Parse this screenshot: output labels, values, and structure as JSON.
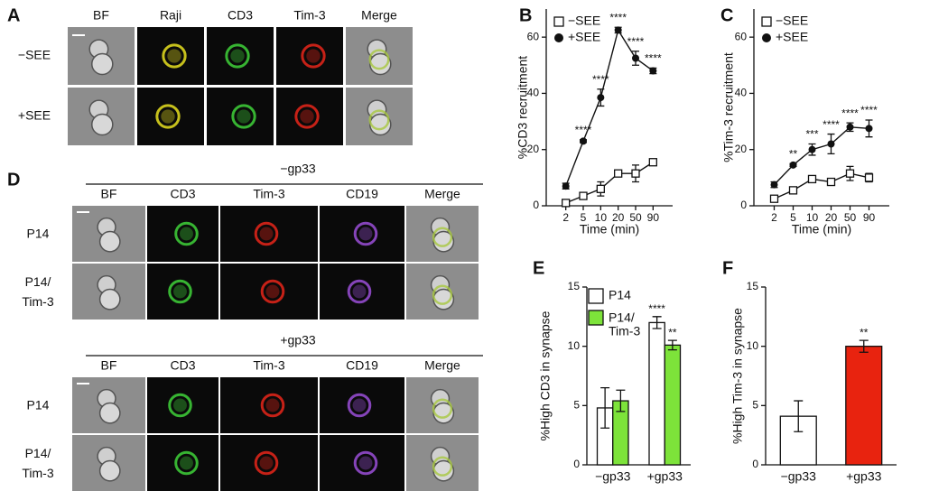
{
  "image_panels": [
    {
      "label": "A",
      "columns": [
        "BF",
        "Raji",
        "CD3",
        "Tim-3",
        "Merge"
      ],
      "rows": [
        "−SEE",
        "+SEE"
      ]
    },
    {
      "label": "D",
      "sections": [
        {
          "title": "−gp33",
          "columns": [
            "BF",
            "CD3",
            "Tim-3",
            "CD19",
            "Merge"
          ],
          "rows": [
            "P14",
            "P14/Tim-3"
          ]
        },
        {
          "title": "+gp33",
          "columns": [
            "BF",
            "CD3",
            "Tim-3",
            "CD19",
            "Merge"
          ],
          "rows": [
            "P14",
            "P14/Tim-3"
          ]
        }
      ]
    }
  ],
  "chart_data": [
    {
      "type": "line",
      "label": "B",
      "y_label": "%CD3 recruitment",
      "x_label": "Time (min)",
      "categories": [
        "2",
        "5",
        "10",
        "20",
        "50",
        "90"
      ],
      "ylim": [
        0,
        70
      ],
      "yticks": [
        0,
        20,
        40,
        60
      ],
      "legend": "upper left",
      "series": [
        {
          "name": "−SEE",
          "color": "#ffffff",
          "marker": "square",
          "values": [
            1,
            3.5,
            6,
            11.5,
            11.5,
            15.5
          ],
          "errors": [
            0.5,
            0.5,
            2.5,
            1,
            3,
            0.5
          ]
        },
        {
          "name": "+SEE",
          "color": "#111111",
          "marker": "circle",
          "values": [
            7,
            23,
            38.5,
            62.5,
            52.5,
            48
          ],
          "errors": [
            1,
            0.5,
            3,
            1,
            2.5,
            1
          ],
          "annotations": [
            null,
            "****",
            "****",
            "****",
            "****",
            "****"
          ]
        }
      ]
    },
    {
      "type": "line",
      "label": "C",
      "y_label": "%Tim-3 recruitment",
      "x_label": "Time (min)",
      "categories": [
        "2",
        "5",
        "10",
        "20",
        "50",
        "90"
      ],
      "ylim": [
        0,
        70
      ],
      "yticks": [
        0,
        20,
        40,
        60
      ],
      "legend": "upper left",
      "series": [
        {
          "name": "−SEE",
          "color": "#ffffff",
          "marker": "square",
          "values": [
            2.5,
            5.5,
            9.5,
            8.5,
            11.5,
            10
          ],
          "errors": [
            0.5,
            0.5,
            0.5,
            1,
            2.5,
            1.5
          ]
        },
        {
          "name": "+SEE",
          "color": "#111111",
          "marker": "circle",
          "values": [
            7.5,
            14.5,
            20,
            22,
            28,
            27.5
          ],
          "errors": [
            1,
            0.5,
            2,
            3.5,
            1.5,
            3
          ],
          "annotations": [
            null,
            "**",
            "***",
            "****",
            "****",
            "****"
          ]
        }
      ]
    },
    {
      "type": "bar",
      "label": "E",
      "y_label": "%High CD3 in synapse",
      "categories": [
        "−gp33",
        "+gp33"
      ],
      "ylim": [
        0,
        15
      ],
      "yticks": [
        0,
        5,
        10,
        15
      ],
      "legend": "upper left",
      "series": [
        {
          "name": "P14",
          "color": "#ffffff",
          "values": [
            4.8,
            12
          ],
          "errors": [
            1.7,
            0.5
          ],
          "annotations": [
            null,
            "****"
          ]
        },
        {
          "name": "P14/Tim-3",
          "color": "#7de33a",
          "values": [
            5.4,
            10.1
          ],
          "errors": [
            0.9,
            0.4
          ],
          "annotations": [
            null,
            "**"
          ]
        }
      ]
    },
    {
      "type": "bar",
      "label": "F",
      "y_label": "%High Tim-3 in synapse",
      "categories": [
        "−gp33",
        "+gp33"
      ],
      "ylim": [
        0,
        15
      ],
      "yticks": [
        0,
        5,
        10,
        15
      ],
      "series": [
        {
          "colors": [
            "#ffffff",
            "#e8230f"
          ],
          "values": [
            4.1,
            10
          ],
          "errors": [
            1.3,
            0.5
          ],
          "annotations": [
            null,
            "**"
          ]
        }
      ]
    }
  ]
}
